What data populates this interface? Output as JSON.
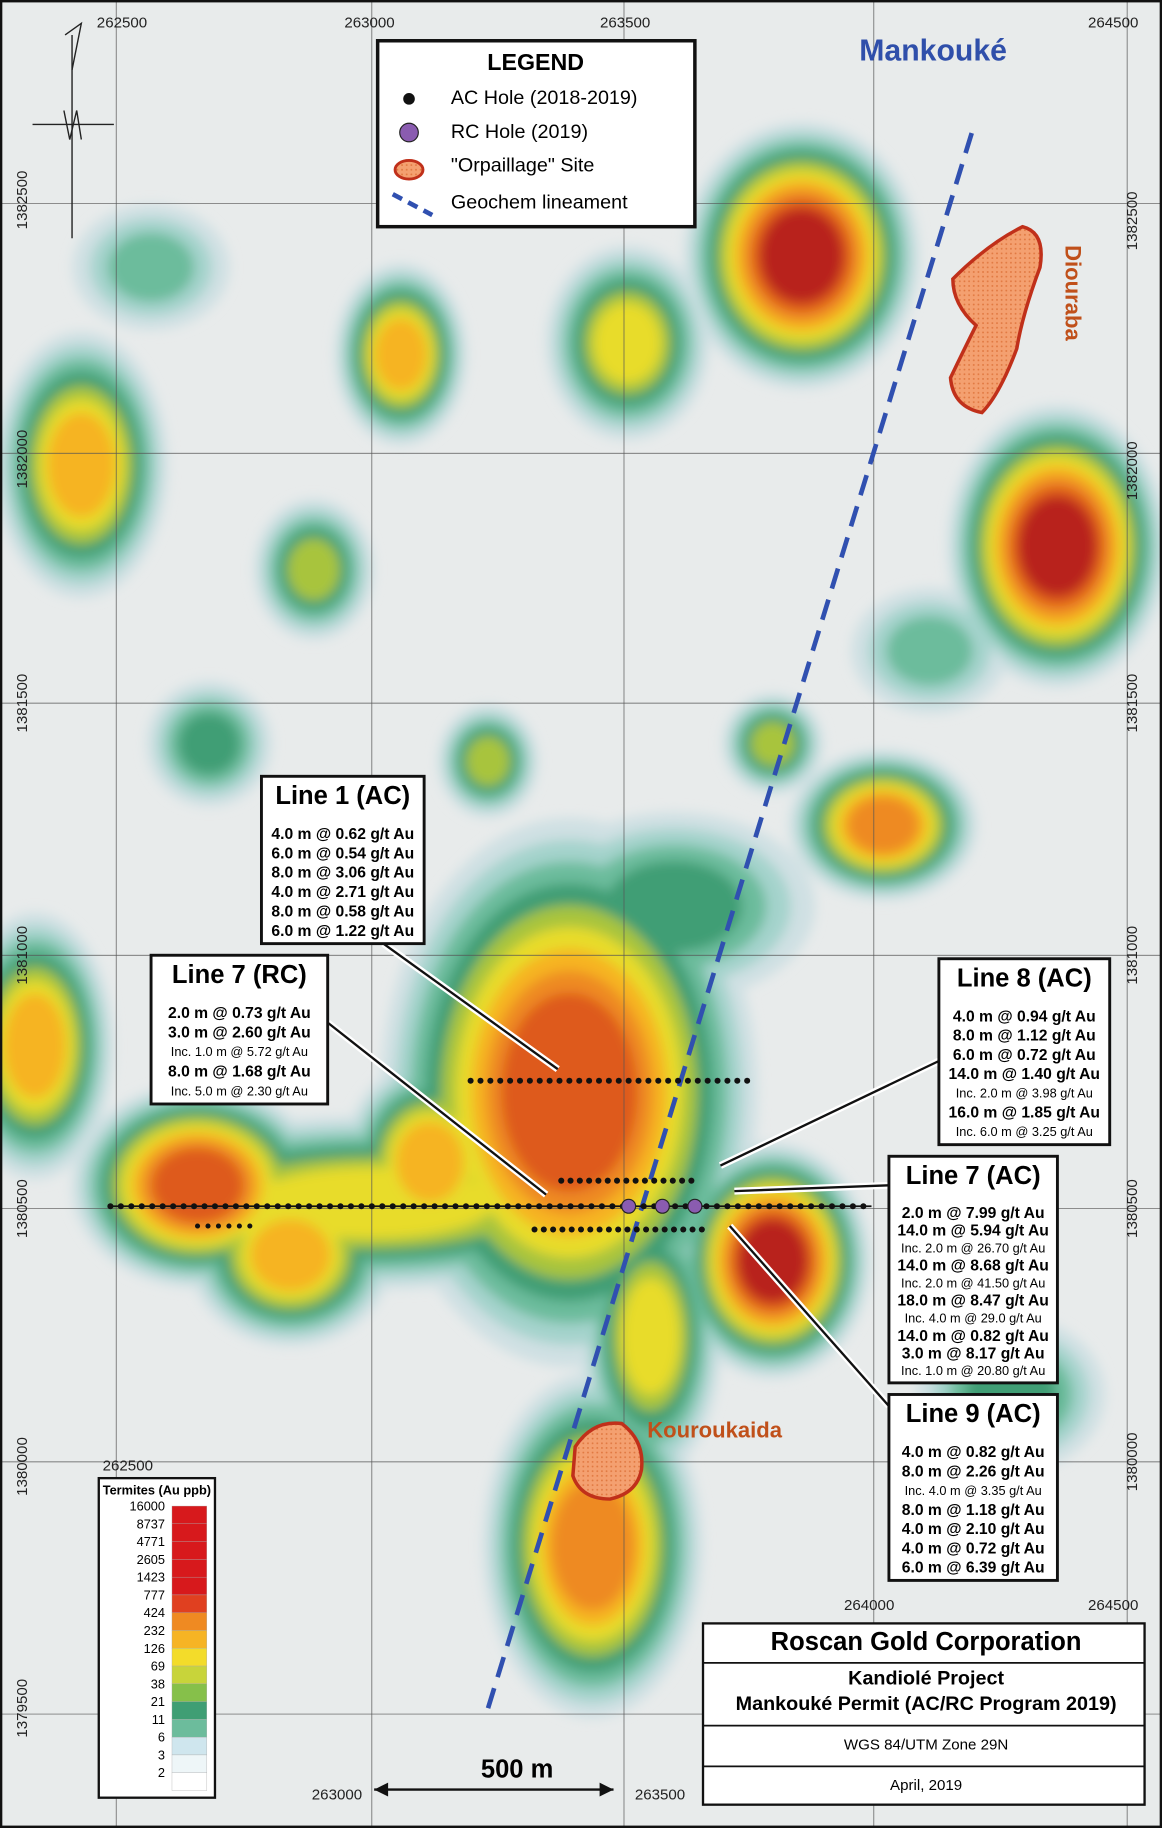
{
  "map": {
    "place_labels": {
      "mankouke": "Mankouké",
      "diouraba": "Diouraba",
      "kouroukaida": "Kouroukaida"
    },
    "grid": {
      "x_top": [
        "262500",
        "263000",
        "263500",
        "264500"
      ],
      "x_inner": [
        "262500",
        "264000",
        "264500"
      ],
      "x_bottom": [
        "263000",
        "263500"
      ],
      "y_left": [
        "1382500",
        "1382000",
        "1381500",
        "1381000",
        "1380500",
        "1380000",
        "1379500"
      ],
      "y_right": [
        "1382500",
        "1382000",
        "1381500",
        "1381000",
        "1380500",
        "1380000"
      ]
    },
    "legend": {
      "title": "LEGEND",
      "items": [
        "AC Hole (2018-2019)",
        "RC Hole (2019)",
        "\"Orpaillage\" Site",
        "Geochem lineament"
      ]
    },
    "callouts": [
      {
        "title": "Line 1 (AC)",
        "lines": [
          "4.0 m @ 0.62 g/t Au",
          "6.0 m @ 0.54 g/t Au",
          "8.0 m @ 3.06 g/t Au",
          "4.0 m @ 2.71 g/t Au",
          "8.0 m @ 0.58 g/t Au",
          "6.0 m @ 1.22 g/t Au"
        ]
      },
      {
        "title": "Line 7 (RC)",
        "lines": [
          "2.0 m @ 0.73 g/t Au",
          "3.0 m @ 2.60 g/t Au",
          "Inc. 1.0 m @ 5.72 g/t Au",
          "8.0 m @ 1.68 g/t Au",
          "Inc. 5.0 m @ 2.30 g/t Au"
        ]
      },
      {
        "title": "Line 8 (AC)",
        "lines": [
          "4.0 m @ 0.94 g/t Au",
          "8.0 m @ 1.12 g/t Au",
          "6.0 m @ 0.72 g/t Au",
          "14.0 m @ 1.40 g/t Au",
          "Inc. 2.0 m @ 3.98 g/t Au",
          "16.0 m @ 1.85 g/t Au",
          "Inc. 6.0 m @ 3.25 g/t Au"
        ]
      },
      {
        "title": "Line 7 (AC)",
        "lines": [
          "2.0 m @ 7.99 g/t Au",
          "14.0 m @ 5.94 g/t Au",
          "Inc. 2.0 m @ 26.70 g/t Au",
          "14.0 m @ 8.68 g/t Au",
          "Inc. 2.0 m @ 41.50 g/t Au",
          "18.0 m @ 8.47 g/t Au",
          "Inc. 4.0 m @ 29.0 g/t Au",
          "14.0 m @ 0.82 g/t Au",
          "3.0 m @ 8.17 g/t Au",
          "Inc. 1.0 m @ 20.80 g/t Au"
        ]
      },
      {
        "title": "Line 9 (AC)",
        "lines": [
          "4.0 m @ 0.82 g/t Au",
          "8.0 m @ 2.26 g/t Au",
          "Inc. 4.0 m @ 3.35 g/t Au",
          "8.0 m @ 1.18 g/t Au",
          "4.0 m @ 2.10 g/t Au",
          "4.0 m @ 0.72 g/t Au",
          "6.0 m @ 6.39 g/t Au"
        ]
      }
    ],
    "color_scale": {
      "title": "Termites (Au ppb)",
      "labels": [
        16000,
        8737,
        4771,
        2605,
        1423,
        777,
        424,
        232,
        126,
        69,
        38,
        21,
        11,
        6,
        3,
        2
      ]
    },
    "scale_bar": "500 m",
    "title_block": {
      "company": "Roscan Gold Corporation",
      "project": "Kandiolé Project",
      "permit": "Mankouké Permit (AC/RC Program 2019)",
      "datum": "WGS 84/UTM Zone 29N",
      "date": "April, 2019"
    }
  }
}
